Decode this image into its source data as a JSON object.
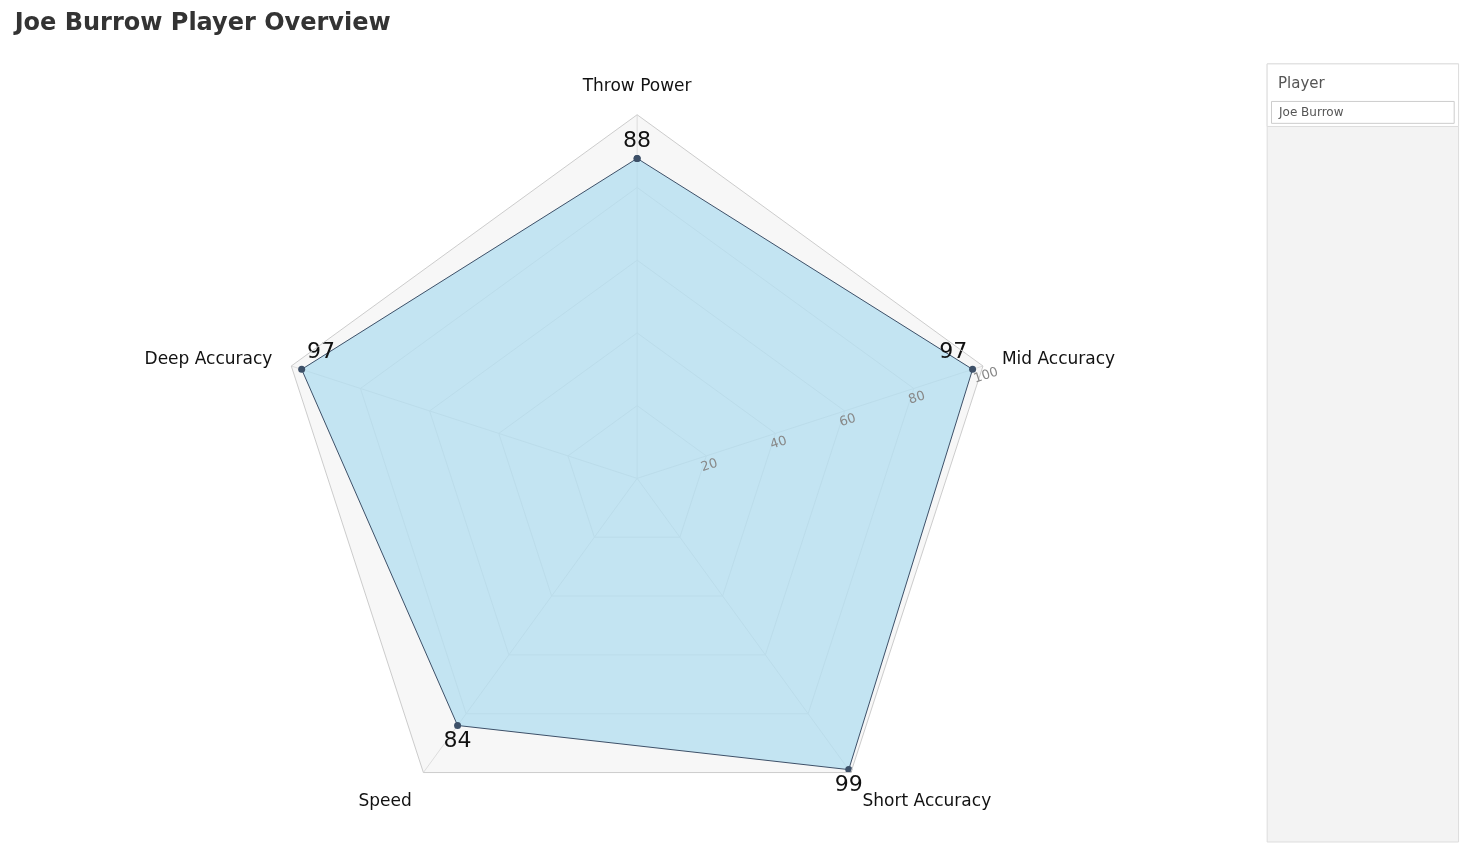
{
  "chart_data": {
    "type": "radar",
    "title": "Joe Burrow Player Overview",
    "categories": [
      "Throw Power",
      "Mid Accuracy",
      "Short Accuracy",
      "Speed",
      "Deep Accuracy"
    ],
    "series": [
      {
        "color": "#3d5068",
        "values": [
          88,
          97,
          99,
          84,
          97
        ]
      }
    ],
    "ylim": [
      0,
      100
    ],
    "yticks": [
      20,
      40,
      60,
      80,
      100
    ],
    "data_labels": true,
    "marker": "circle",
    "grid": true,
    "annotations": [
      "Player",
      "Joe Burrow"
    ]
  }
}
